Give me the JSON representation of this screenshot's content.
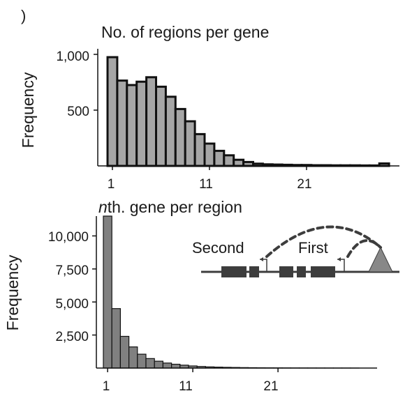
{
  "panel_marker": ")",
  "chart_data": [
    {
      "type": "bar",
      "title": "No. of regions per gene",
      "xlabel": "",
      "ylabel": "Frequency",
      "color": "#a6a6a6",
      "x": [
        1,
        2,
        3,
        4,
        5,
        6,
        7,
        8,
        9,
        10,
        11,
        12,
        13,
        14,
        15,
        16,
        17,
        18,
        19,
        20,
        21,
        22,
        23,
        24,
        25,
        26,
        27,
        28,
        29
      ],
      "values": [
        975,
        765,
        725,
        755,
        795,
        710,
        620,
        510,
        400,
        285,
        200,
        135,
        95,
        55,
        35,
        20,
        14,
        12,
        10,
        8,
        8,
        6,
        6,
        5,
        5,
        5,
        4,
        4,
        22
      ],
      "xticks": [
        "1",
        "11",
        "21"
      ],
      "yticks": [
        "500",
        "1,000"
      ],
      "ylim": [
        0,
        1100
      ]
    },
    {
      "type": "bar",
      "title": "nth. gene per region",
      "xlabel": "",
      "ylabel": "Frequency",
      "color": "#808080",
      "x": [
        1,
        2,
        3,
        4,
        5,
        6,
        7,
        8,
        9,
        10,
        11,
        12,
        13,
        14,
        15,
        16,
        17,
        18,
        19,
        20,
        21,
        22,
        23,
        24,
        25,
        26,
        27,
        28,
        29,
        30
      ],
      "values": [
        11500,
        4500,
        2400,
        1600,
        1050,
        720,
        520,
        380,
        290,
        220,
        160,
        120,
        90,
        70,
        55,
        45,
        35,
        28,
        22,
        18,
        15,
        12,
        10,
        8,
        6,
        5,
        4,
        3,
        3,
        2
      ],
      "xticks": [
        "1",
        "11",
        "21"
      ],
      "yticks": [
        "2,500",
        "5,000",
        "7,500",
        "10,000"
      ],
      "ylim": [
        0,
        11500
      ]
    }
  ],
  "inset": {
    "label_second": "Second",
    "label_first": "First",
    "exon_color": "#3d3d3d",
    "enhancer_color": "#888888"
  }
}
